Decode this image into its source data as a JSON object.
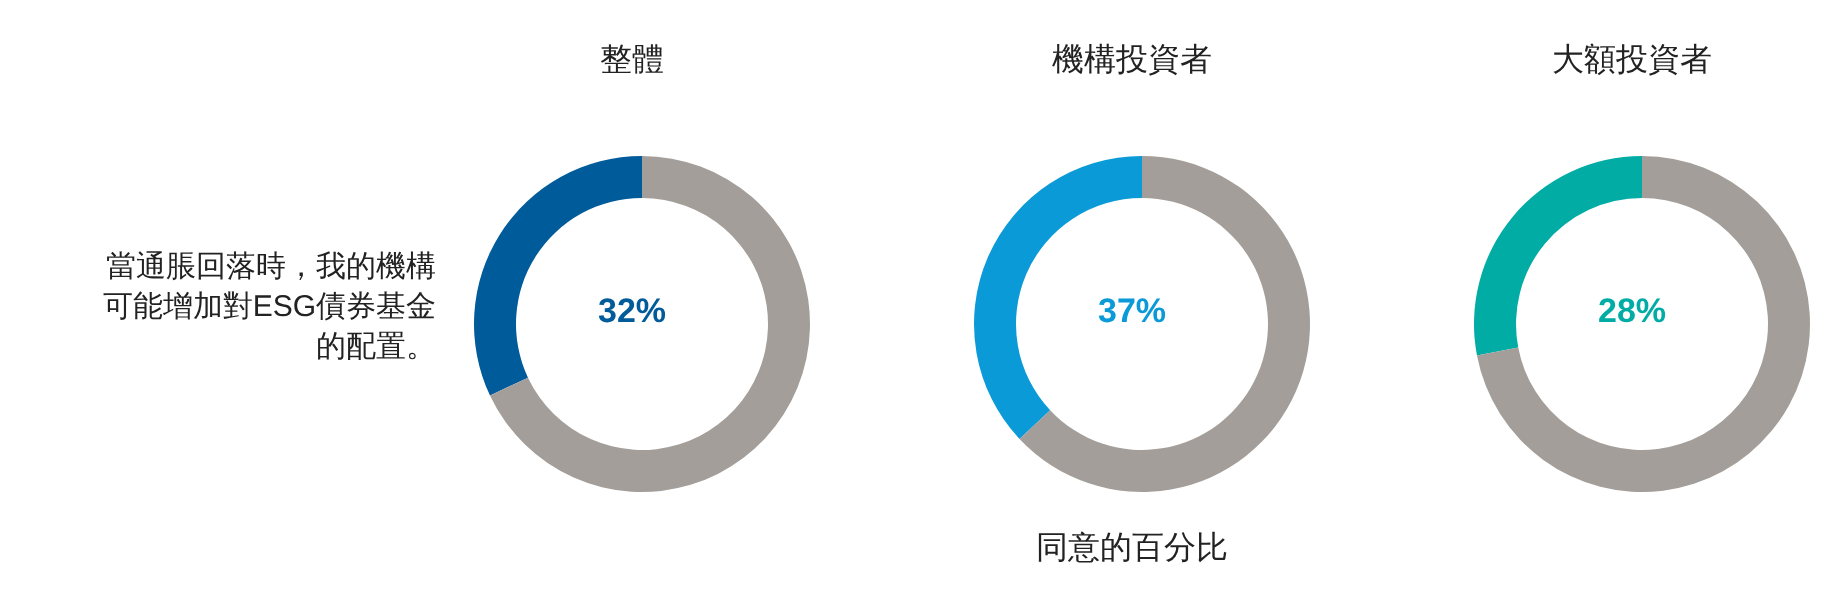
{
  "chart_data": [
    {
      "type": "donut",
      "title": "整體",
      "categories": [
        null,
        null
      ],
      "values": [
        32,
        68
      ],
      "colors": [
        "#005b9a",
        "#a39e99"
      ],
      "value_labels": [
        "32%",
        null
      ],
      "annotations": [
        "當通脹回落時，我的機構可能增加對ESG債券基金的配置。"
      ]
    },
    {
      "type": "donut",
      "title": "機構投資者",
      "categories": [
        null,
        null
      ],
      "values": [
        37,
        63
      ],
      "colors": [
        "#0a9ad8",
        "#a39e99"
      ],
      "value_labels": [
        "37%",
        null
      ],
      "xlabel": "同意的百分比"
    },
    {
      "type": "donut",
      "title": "大額投資者",
      "categories": [
        null,
        null
      ],
      "values": [
        28,
        72
      ],
      "colors": [
        "#00aca4",
        "#a39e99"
      ],
      "value_labels": [
        "28%",
        null
      ]
    }
  ]
}
